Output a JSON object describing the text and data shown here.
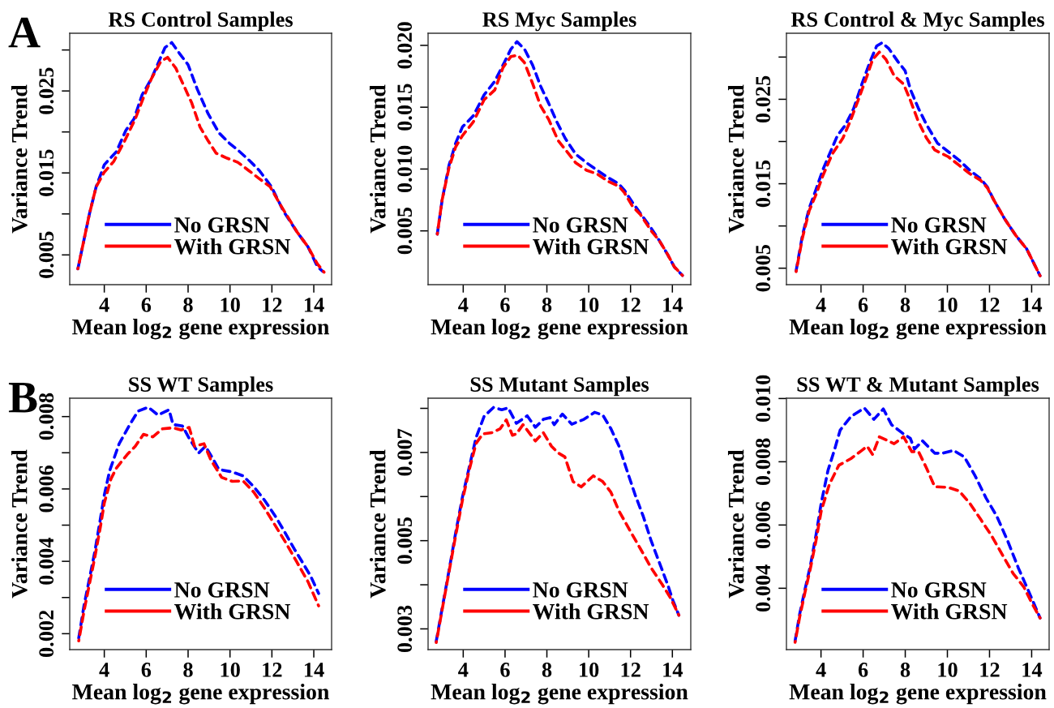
{
  "chart_data": [
    {
      "type": "line",
      "title": "RS Control Samples",
      "xlabel": "Mean log$_{2}$ gene expression",
      "ylabel": "Variance Trend",
      "annotations": [
        "A"
      ],
      "legend": "bottom left",
      "line_style": "dashed",
      "marker": "none",
      "grid": false,
      "xlim": [
        2.35,
        14.85
      ],
      "xticks": [
        4,
        6,
        8,
        10,
        12,
        14
      ],
      "ylim": [
        0.00137,
        0.03204
      ],
      "yticks": [
        {
          "value": 0.005,
          "label": "0.005"
        },
        {
          "value": 0.01,
          "label": null
        },
        {
          "value": 0.015,
          "label": "0.015"
        },
        {
          "value": 0.02,
          "label": null
        },
        {
          "value": 0.025,
          "label": "0.025"
        },
        {
          "value": 0.03,
          "label": null
        }
      ],
      "series": [
        {
          "name": "No GRSN",
          "color": "#0000ff",
          "x": [
            2.74,
            3.29,
            3.61,
            4.0,
            4.58,
            5.03,
            5.42,
            5.8,
            6.25,
            6.64,
            6.9,
            7.22,
            7.61,
            8.0,
            8.44,
            8.96,
            9.47,
            9.98,
            10.37,
            10.89,
            11.4,
            11.98,
            12.56,
            13.2,
            13.72,
            14.17,
            14.42
          ],
          "values": [
            0.0033,
            0.01,
            0.0133,
            0.016,
            0.0176,
            0.0202,
            0.0216,
            0.0245,
            0.0265,
            0.0288,
            0.0303,
            0.0309,
            0.0295,
            0.0282,
            0.0252,
            0.0222,
            0.0199,
            0.0186,
            0.0178,
            0.0166,
            0.0153,
            0.0133,
            0.0103,
            0.0078,
            0.006,
            0.0036,
            0.003
          ]
        },
        {
          "name": "With GRSN",
          "color": "#ff0000",
          "x": [
            2.74,
            3.29,
            3.61,
            4.0,
            4.45,
            4.97,
            5.48,
            5.87,
            6.25,
            6.7,
            7.02,
            7.41,
            7.93,
            8.18,
            8.57,
            8.96,
            9.34,
            9.86,
            10.37,
            10.89,
            11.4,
            11.92,
            12.43,
            13.2,
            13.72,
            14.17,
            14.49
          ],
          "values": [
            0.0033,
            0.01,
            0.0133,
            0.0151,
            0.0164,
            0.0189,
            0.0216,
            0.0242,
            0.0265,
            0.0286,
            0.0291,
            0.0278,
            0.0249,
            0.0235,
            0.0206,
            0.0189,
            0.0174,
            0.0168,
            0.0163,
            0.0153,
            0.0143,
            0.0133,
            0.011,
            0.0078,
            0.006,
            0.0039,
            0.0029
          ]
        }
      ]
    },
    {
      "type": "line",
      "title": "RS Myc Samples",
      "xlabel": "Mean log$_{2}$ gene expression",
      "ylabel": "Variance Trend",
      "legend": "bottom left",
      "line_style": "dashed",
      "marker": "none",
      "grid": false,
      "xlim": [
        2.32,
        14.88
      ],
      "xticks": [
        4,
        6,
        8,
        10,
        12,
        14
      ],
      "ylim": [
        0.00065,
        0.02098
      ],
      "yticks": [
        {
          "value": 0.005,
          "label": "0.005"
        },
        {
          "value": 0.01,
          "label": "0.010"
        },
        {
          "value": 0.015,
          "label": "0.015"
        },
        {
          "value": 0.02,
          "label": "0.020"
        }
      ],
      "series": [
        {
          "name": "No GRSN",
          "color": "#0000ff",
          "x": [
            2.76,
            2.99,
            3.32,
            3.64,
            3.96,
            4.48,
            5.0,
            5.51,
            5.96,
            6.28,
            6.57,
            6.93,
            7.32,
            7.7,
            8.09,
            8.48,
            8.87,
            9.38,
            9.9,
            10.41,
            10.93,
            11.44,
            11.7,
            12.09,
            12.48,
            12.99,
            13.38,
            13.77,
            14.09,
            14.48
          ],
          "values": [
            0.00474,
            0.00747,
            0.0103,
            0.0121,
            0.0134,
            0.0143,
            0.016,
            0.0171,
            0.0186,
            0.0197,
            0.0203,
            0.0197,
            0.0184,
            0.0167,
            0.0153,
            0.0138,
            0.0125,
            0.0112,
            0.0105,
            0.0099,
            0.0093,
            0.0088,
            0.0083,
            0.0073,
            0.0064,
            0.0052,
            0.0042,
            0.0031,
            0.0021,
            0.0014
          ]
        },
        {
          "name": "With GRSN",
          "color": "#ff0000",
          "x": [
            2.76,
            2.99,
            3.32,
            3.64,
            3.96,
            4.48,
            5.0,
            5.51,
            5.9,
            6.28,
            6.61,
            6.93,
            7.32,
            7.7,
            8.09,
            8.54,
            8.87,
            9.38,
            9.9,
            10.41,
            10.93,
            11.44,
            11.7,
            12.09,
            12.48,
            12.99,
            13.38,
            13.77,
            14.09,
            14.48
          ],
          "values": [
            0.00474,
            0.0075,
            0.0101,
            0.0118,
            0.0127,
            0.0138,
            0.0156,
            0.0164,
            0.0182,
            0.0191,
            0.0192,
            0.0186,
            0.0169,
            0.0151,
            0.014,
            0.0123,
            0.0116,
            0.0105,
            0.0099,
            0.0096,
            0.009,
            0.0086,
            0.0081,
            0.007,
            0.0063,
            0.005,
            0.0042,
            0.0031,
            0.0021,
            0.0014
          ]
        }
      ]
    },
    {
      "type": "line",
      "title": "RS Control & Myc Samples",
      "xlabel": "Mean log$_{2}$ gene expression",
      "ylabel": "Variance Trend",
      "legend": "bottom left",
      "line_style": "dashed",
      "marker": "none",
      "grid": false,
      "xlim": [
        2.36,
        14.83
      ],
      "xticks": [
        4,
        6,
        8,
        10,
        12,
        14
      ],
      "ylim": [
        0.00305,
        0.03282
      ],
      "yticks": [
        {
          "value": 0.005,
          "label": "0.005"
        },
        {
          "value": 0.01,
          "label": null
        },
        {
          "value": 0.015,
          "label": "0.015"
        },
        {
          "value": 0.02,
          "label": null
        },
        {
          "value": 0.025,
          "label": "0.025"
        },
        {
          "value": 0.03,
          "label": null
        }
      ],
      "series": [
        {
          "name": "No GRSN",
          "color": "#0000ff",
          "x": [
            2.82,
            3.12,
            3.44,
            3.76,
            4.08,
            4.4,
            4.78,
            5.17,
            5.55,
            5.94,
            6.32,
            6.64,
            6.9,
            7.22,
            7.67,
            7.99,
            8.24,
            8.63,
            9.01,
            9.53,
            10.04,
            10.55,
            11.06,
            11.58,
            11.9,
            12.22,
            12.73,
            13.24,
            13.76,
            14.08,
            14.4
          ],
          "values": [
            0.0047,
            0.0089,
            0.0121,
            0.0143,
            0.0166,
            0.0185,
            0.0207,
            0.022,
            0.0239,
            0.0268,
            0.0294,
            0.0313,
            0.0317,
            0.031,
            0.0294,
            0.0284,
            0.0262,
            0.0239,
            0.022,
            0.0198,
            0.0188,
            0.0178,
            0.0166,
            0.0156,
            0.0146,
            0.013,
            0.0108,
            0.0089,
            0.0073,
            0.0057,
            0.0041
          ]
        },
        {
          "name": "With GRSN",
          "color": "#ff0000",
          "x": [
            2.82,
            3.12,
            3.44,
            3.76,
            4.08,
            4.53,
            5.04,
            5.42,
            5.81,
            6.19,
            6.45,
            6.77,
            7.09,
            7.47,
            7.92,
            8.24,
            8.63,
            9.01,
            9.4,
            10.04,
            10.55,
            11.06,
            11.58,
            11.9,
            12.22,
            12.73,
            13.24,
            13.76,
            14.08,
            14.4
          ],
          "values": [
            0.0046,
            0.0086,
            0.0118,
            0.0137,
            0.0159,
            0.0185,
            0.0204,
            0.0226,
            0.0252,
            0.0278,
            0.0297,
            0.0306,
            0.0297,
            0.0278,
            0.0268,
            0.0249,
            0.0223,
            0.0204,
            0.019,
            0.0182,
            0.0172,
            0.0162,
            0.0154,
            0.0145,
            0.013,
            0.0108,
            0.0089,
            0.0073,
            0.0057,
            0.0041
          ]
        }
      ]
    },
    {
      "type": "line",
      "title": "SS WT Samples",
      "xlabel": "Mean log$_{2}$ gene expression",
      "ylabel": "Variance Trend",
      "annotations": [
        "B"
      ],
      "legend": "bottom left",
      "line_style": "dashed",
      "marker": "none",
      "grid": false,
      "xlim": [
        2.35,
        14.85
      ],
      "xticks": [
        4,
        6,
        8,
        10,
        12,
        14
      ],
      "ylim": [
        0.00156,
        0.008508
      ],
      "yticks": [
        {
          "value": 0.002,
          "label": "0.002"
        },
        {
          "value": 0.003,
          "label": null
        },
        {
          "value": 0.004,
          "label": "0.004"
        },
        {
          "value": 0.005,
          "label": null
        },
        {
          "value": 0.006,
          "label": "0.006"
        },
        {
          "value": 0.007,
          "label": null
        },
        {
          "value": 0.008,
          "label": "0.008"
        }
      ],
      "series": [
        {
          "name": "No GRSN",
          "color": "#0000ff",
          "x": [
            2.78,
            3.03,
            3.29,
            3.55,
            3.81,
            4.0,
            4.26,
            4.71,
            5.22,
            5.61,
            6.1,
            6.57,
            7.09,
            7.28,
            7.73,
            8.05,
            8.5,
            8.83,
            9.21,
            9.47,
            10.11,
            10.63,
            11.14,
            11.66,
            12.17,
            12.56,
            13.07,
            13.46,
            13.85,
            14.23
          ],
          "values": [
            0.00188,
            0.00277,
            0.00352,
            0.00427,
            0.00516,
            0.00583,
            0.00651,
            0.00725,
            0.00778,
            0.00815,
            0.00826,
            0.00804,
            0.00819,
            0.00778,
            0.00774,
            0.0074,
            0.00699,
            0.00718,
            0.00681,
            0.00654,
            0.00647,
            0.00636,
            0.00606,
            0.00568,
            0.00524,
            0.00486,
            0.00434,
            0.00397,
            0.00359,
            0.00311
          ]
        },
        {
          "name": "With GRSN",
          "color": "#ff0000",
          "x": [
            2.78,
            3.03,
            3.29,
            3.55,
            3.81,
            4.0,
            4.32,
            4.58,
            5.09,
            5.48,
            5.87,
            6.32,
            6.77,
            7.28,
            7.67,
            8.05,
            8.31,
            8.76,
            9.08,
            9.6,
            10.11,
            10.63,
            11.14,
            11.66,
            12.17,
            12.69,
            13.2,
            13.72,
            14.23
          ],
          "values": [
            0.0018,
            0.00262,
            0.00337,
            0.00412,
            0.00494,
            0.00561,
            0.00628,
            0.00658,
            0.00695,
            0.00718,
            0.00751,
            0.00744,
            0.00766,
            0.00769,
            0.00763,
            0.0077,
            0.00718,
            0.00725,
            0.00681,
            0.00632,
            0.00621,
            0.00622,
            0.00591,
            0.00546,
            0.00498,
            0.00449,
            0.00397,
            0.00344,
            0.00277
          ]
        }
      ]
    },
    {
      "type": "line",
      "title": "SS Mutant Samples",
      "xlabel": "Mean log$_{2}$ gene expression",
      "ylabel": "Variance Trend",
      "legend": "bottom left",
      "line_style": "dashed",
      "marker": "none",
      "grid": false,
      "xlim": [
        2.32,
        14.88
      ],
      "xticks": [
        4,
        6,
        8,
        10,
        12,
        14
      ],
      "ylim": [
        0.00253,
        0.00823
      ],
      "yticks": [
        {
          "value": 0.003,
          "label": "0.003"
        },
        {
          "value": 0.004,
          "label": null
        },
        {
          "value": 0.005,
          "label": "0.005"
        },
        {
          "value": 0.006,
          "label": null
        },
        {
          "value": 0.007,
          "label": "0.007"
        },
        {
          "value": 0.008,
          "label": null
        }
      ],
      "series": [
        {
          "name": "No GRSN",
          "color": "#0000ff",
          "x": [
            2.71,
            2.99,
            3.32,
            3.64,
            3.96,
            4.28,
            4.61,
            5.0,
            5.45,
            5.84,
            6.15,
            6.54,
            7.06,
            7.45,
            7.83,
            8.15,
            8.35,
            8.74,
            9.19,
            9.77,
            10.28,
            10.67,
            11.06,
            11.45,
            11.83,
            12.22,
            12.61,
            12.99,
            13.38,
            13.77,
            14.03,
            14.31
          ],
          "values": [
            0.00272,
            0.00346,
            0.00432,
            0.00518,
            0.00598,
            0.00665,
            0.00733,
            0.00782,
            0.00802,
            0.00797,
            0.00801,
            0.00766,
            0.00783,
            0.00757,
            0.00775,
            0.00779,
            0.00763,
            0.00787,
            0.00764,
            0.00775,
            0.00791,
            0.00785,
            0.00754,
            0.00714,
            0.00659,
            0.00604,
            0.00555,
            0.00499,
            0.0045,
            0.00401,
            0.00364,
            0.00331
          ]
        },
        {
          "name": "With GRSN",
          "color": "#ff0000",
          "x": [
            2.71,
            2.99,
            3.32,
            3.64,
            3.96,
            4.28,
            4.61,
            4.93,
            5.38,
            5.77,
            6.06,
            6.35,
            6.54,
            6.86,
            7.45,
            7.83,
            8.22,
            8.54,
            8.86,
            9.25,
            9.64,
            10.22,
            10.67,
            11.06,
            11.45,
            11.96,
            12.48,
            12.99,
            13.51,
            13.9,
            14.31
          ],
          "values": [
            0.00269,
            0.00343,
            0.00429,
            0.00512,
            0.00591,
            0.00659,
            0.0072,
            0.00742,
            0.00745,
            0.00754,
            0.00774,
            0.00739,
            0.00742,
            0.00763,
            0.00726,
            0.00745,
            0.00714,
            0.00699,
            0.0069,
            0.00634,
            0.00622,
            0.00647,
            0.00634,
            0.0061,
            0.00567,
            0.00524,
            0.00481,
            0.00438,
            0.00401,
            0.00371,
            0.00331
          ]
        }
      ]
    },
    {
      "type": "line",
      "title": "SS WT & Mutant Samples",
      "xlabel": "Mean log$_{2}$ gene expression",
      "ylabel": "Variance Trend",
      "legend": "bottom left",
      "line_style": "dashed",
      "marker": "none",
      "grid": false,
      "xlim": [
        2.36,
        14.83
      ],
      "xticks": [
        4,
        6,
        8,
        10,
        12,
        14
      ],
      "ylim": [
        0.00206,
        0.01001
      ],
      "yticks": [
        {
          "value": 0.004,
          "label": "0.004"
        },
        {
          "value": 0.006,
          "label": "0.006"
        },
        {
          "value": 0.008,
          "label": "0.008"
        },
        {
          "value": 0.01,
          "label": "0.010"
        }
      ],
      "series": [
        {
          "name": "No GRSN",
          "color": "#0000ff",
          "x": [
            2.77,
            2.99,
            3.24,
            3.5,
            3.76,
            4.01,
            4.33,
            4.65,
            4.91,
            5.42,
            6.06,
            6.51,
            6.96,
            7.35,
            7.86,
            8.24,
            8.44,
            8.82,
            9.4,
            9.78,
            10.29,
            10.81,
            11.32,
            11.83,
            12.35,
            12.86,
            13.37,
            13.88,
            14.4
          ],
          "values": [
            0.00233,
            0.00319,
            0.00396,
            0.00473,
            0.00567,
            0.00669,
            0.00772,
            0.0084,
            0.009,
            0.00943,
            0.0097,
            0.00934,
            0.00967,
            0.00917,
            0.00891,
            0.00874,
            0.0084,
            0.00866,
            0.00827,
            0.00827,
            0.00836,
            0.00815,
            0.00755,
            0.00686,
            0.00627,
            0.0055,
            0.00464,
            0.00387,
            0.00306
          ]
        },
        {
          "name": "With GRSN",
          "color": "#ff0000",
          "x": [
            2.77,
            2.99,
            3.24,
            3.5,
            3.76,
            4.01,
            4.4,
            4.85,
            5.42,
            5.94,
            6.19,
            6.45,
            6.77,
            7.47,
            7.92,
            8.31,
            8.63,
            9.01,
            9.4,
            10.04,
            10.55,
            11.06,
            11.58,
            12.09,
            12.6,
            13.12,
            13.63,
            14.01,
            14.4
          ],
          "values": [
            0.00229,
            0.0031,
            0.00387,
            0.00464,
            0.0055,
            0.00644,
            0.00729,
            0.00789,
            0.0081,
            0.00836,
            0.00849,
            0.00823,
            0.00879,
            0.00857,
            0.00879,
            0.00832,
            0.00832,
            0.0078,
            0.00721,
            0.00719,
            0.00708,
            0.00669,
            0.00618,
            0.00567,
            0.00507,
            0.00447,
            0.00404,
            0.00353,
            0.00306
          ]
        }
      ]
    }
  ]
}
